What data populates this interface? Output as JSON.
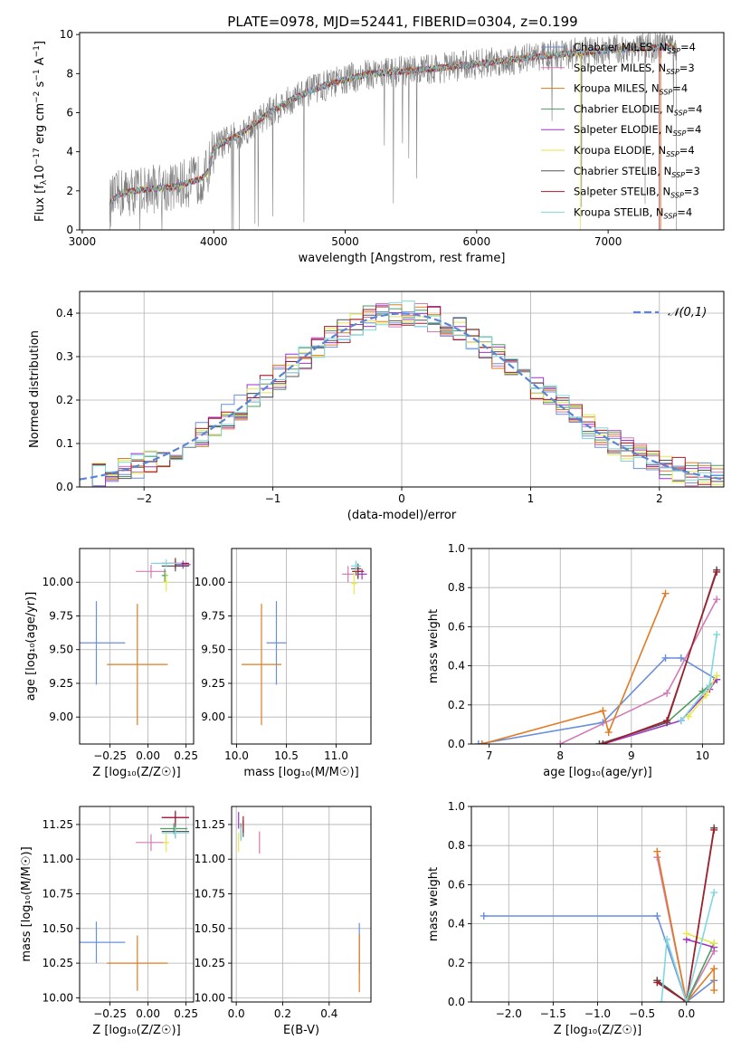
{
  "figure": {
    "title": "PLATE=0978, MJD=52441, FIBERID=0304, z=0.199"
  },
  "models": [
    {
      "name": "Chabrier MILES, N",
      "sub": "SSP",
      "suffix": "=4",
      "color": "#6a8fdb"
    },
    {
      "name": "Salpeter MILES, N",
      "sub": "SSP",
      "suffix": "=3",
      "color": "#d47ab8"
    },
    {
      "name": "Kroupa MILES, N",
      "sub": "SSP",
      "suffix": "=4",
      "color": "#e07b22"
    },
    {
      "name": "Chabrier ELODIE, N",
      "sub": "SSP",
      "suffix": "=4",
      "color": "#4f9d5e"
    },
    {
      "name": "Salpeter ELODIE, N",
      "sub": "SSP",
      "suffix": "=4",
      "color": "#a033c9"
    },
    {
      "name": "Kroupa ELODIE, N",
      "sub": "SSP",
      "suffix": "=4",
      "color": "#e6e84a"
    },
    {
      "name": "Chabrier STELIB, N",
      "sub": "SSP",
      "suffix": "=3",
      "color": "#555555"
    },
    {
      "name": "Salpeter STELIB, N",
      "sub": "SSP",
      "suffix": "=3",
      "color": "#a51d2a"
    },
    {
      "name": "Kroupa STELIB, N",
      "sub": "SSP",
      "suffix": "=4",
      "color": "#7fd8e0"
    }
  ],
  "chart_data": [
    {
      "id": "spectrum",
      "type": "line",
      "xlabel": "wavelength [Angstrom, rest frame]",
      "ylabel_main": "Flux [f",
      "ylabel_sub": "λ",
      "ylabel_rest": "10",
      "ylabel_sup1": "−17",
      "ylabel_mid": " erg cm",
      "ylabel_sup2": "−2",
      "ylabel_mid2": " s",
      "ylabel_sup3": "−1",
      "ylabel_end": " A",
      "ylabel_sup4": "−1",
      "ylabel_close": "]",
      "xlim": [
        2980,
        7880
      ],
      "ylim": [
        0,
        10.1
      ],
      "xticks": [
        3000,
        4000,
        5000,
        6000,
        7000
      ],
      "yticks": [
        0,
        2,
        4,
        6,
        8,
        10
      ],
      "data_wavelength_range": [
        3210,
        7520
      ],
      "continuum_points": [
        [
          3210,
          1.4
        ],
        [
          3300,
          1.9
        ],
        [
          3500,
          2.1
        ],
        [
          3700,
          2.2
        ],
        [
          3900,
          2.6
        ],
        [
          3950,
          2.9
        ],
        [
          4000,
          4.2
        ],
        [
          4200,
          4.9
        ],
        [
          4400,
          5.9
        ],
        [
          4600,
          6.7
        ],
        [
          4800,
          7.3
        ],
        [
          5000,
          7.7
        ],
        [
          5200,
          8.0
        ],
        [
          5600,
          8.2
        ],
        [
          6000,
          8.5
        ],
        [
          6500,
          8.9
        ],
        [
          7000,
          9.2
        ],
        [
          7500,
          9.4
        ]
      ],
      "grid": false
    },
    {
      "id": "residuals",
      "type": "histogram",
      "xlabel": "(data-model)/error",
      "ylabel": "Normed distribution",
      "xlim": [
        -2.5,
        2.5
      ],
      "ylim": [
        0,
        0.45
      ],
      "xticks": [
        -2,
        -1,
        0,
        1,
        2
      ],
      "yticks": [
        0.0,
        0.1,
        0.2,
        0.3,
        0.4
      ],
      "bin_width": 0.1,
      "reference_curve": {
        "label": "𝒩(0,1)",
        "mean": 0,
        "sigma": 1,
        "style": "dashed",
        "color": "#5b84d6"
      },
      "legend_position": "top-right",
      "grid": true
    },
    {
      "id": "age-vs-Z",
      "type": "errorbar",
      "xlabel": "Z [log₁₀(Z/Z☉)]",
      "ylabel": "age  [log₁₀(age/yr)]",
      "xlim": [
        -0.45,
        0.3
      ],
      "ylim": [
        8.8,
        10.25
      ],
      "xticks": [
        -0.25,
        0.0,
        0.25
      ],
      "yticks": [
        9.0,
        9.25,
        9.5,
        9.75,
        10.0
      ],
      "points": [
        {
          "m": 0,
          "x": -0.34,
          "y": 9.55,
          "ex": 0.19,
          "ey": 0.31
        },
        {
          "m": 2,
          "x": -0.07,
          "y": 9.39,
          "ex": 0.2,
          "ey": 0.45
        },
        {
          "m": 1,
          "x": 0.02,
          "y": 10.08,
          "ex": 0.1,
          "ey": 0.05
        },
        {
          "m": 3,
          "x": 0.11,
          "y": 10.05,
          "ex": 0.02,
          "ey": 0.05
        },
        {
          "m": 4,
          "x": 0.23,
          "y": 10.13,
          "ex": 0.05,
          "ey": 0.03
        },
        {
          "m": 5,
          "x": 0.12,
          "y": 10.0,
          "ex": 0.02,
          "ey": 0.07
        },
        {
          "m": 6,
          "x": 0.18,
          "y": 10.12,
          "ex": 0.09,
          "ey": 0.04
        },
        {
          "m": 7,
          "x": 0.18,
          "y": 10.14,
          "ex": 0.09,
          "ey": 0.04
        },
        {
          "m": 8,
          "x": 0.12,
          "y": 10.14,
          "ex": 0.1,
          "ey": 0.03
        }
      ],
      "grid": true
    },
    {
      "id": "age-vs-mass",
      "type": "errorbar",
      "xlabel": "mass [log₁₀(M/M☉)]",
      "ylabel": "",
      "xlim": [
        9.95,
        11.35
      ],
      "ylim": [
        8.8,
        10.25
      ],
      "xticks": [
        10.0,
        10.5,
        11.0
      ],
      "yticks": [
        9.0,
        9.25,
        9.5,
        9.75,
        10.0
      ],
      "points": [
        {
          "m": 0,
          "x": 10.4,
          "y": 9.55,
          "ex": 0.1,
          "ey": 0.31
        },
        {
          "m": 2,
          "x": 10.25,
          "y": 9.39,
          "ex": 0.2,
          "ey": 0.45
        },
        {
          "m": 1,
          "x": 11.12,
          "y": 10.06,
          "ex": 0.06,
          "ey": 0.06
        },
        {
          "m": 3,
          "x": 11.22,
          "y": 10.08,
          "ex": 0.05,
          "ey": 0.06
        },
        {
          "m": 4,
          "x": 11.26,
          "y": 10.06,
          "ex": 0.05,
          "ey": 0.04
        },
        {
          "m": 5,
          "x": 11.18,
          "y": 9.99,
          "ex": 0.03,
          "ey": 0.08
        },
        {
          "m": 6,
          "x": 11.2,
          "y": 10.1,
          "ex": 0.05,
          "ey": 0.05
        },
        {
          "m": 7,
          "x": 11.22,
          "y": 10.08,
          "ex": 0.06,
          "ey": 0.05
        },
        {
          "m": 8,
          "x": 11.2,
          "y": 10.12,
          "ex": 0.05,
          "ey": 0.04
        }
      ],
      "grid": true
    },
    {
      "id": "massweight-vs-age",
      "type": "line",
      "xlabel": "age  [log₁₀(age/yr)]",
      "ylabel": "mass weight",
      "xlim": [
        6.75,
        10.3
      ],
      "ylim": [
        0,
        1.0
      ],
      "xticks": [
        7,
        8,
        9,
        10
      ],
      "yticks": [
        0.0,
        0.2,
        0.4,
        0.6,
        0.8,
        1.0
      ],
      "series": [
        {
          "m": 0,
          "points": [
            [
              6.85,
              0.0
            ],
            [
              8.6,
              0.11
            ],
            [
              9.48,
              0.44
            ],
            [
              9.7,
              0.44
            ],
            [
              10.2,
              0.33
            ]
          ]
        },
        {
          "m": 1,
          "points": [
            [
              8.0,
              0.0
            ],
            [
              9.5,
              0.26
            ],
            [
              10.2,
              0.74
            ]
          ]
        },
        {
          "m": 2,
          "points": [
            [
              6.9,
              0.0
            ],
            [
              8.6,
              0.17
            ],
            [
              8.68,
              0.06
            ],
            [
              9.48,
              0.77
            ]
          ]
        },
        {
          "m": 3,
          "points": [
            [
              8.55,
              0.0
            ],
            [
              9.5,
              0.11
            ],
            [
              10.0,
              0.27
            ],
            [
              10.2,
              0.33
            ]
          ]
        },
        {
          "m": 4,
          "points": [
            [
              8.6,
              0.0
            ],
            [
              9.7,
              0.12
            ],
            [
              10.1,
              0.28
            ],
            [
              10.2,
              0.33
            ]
          ]
        },
        {
          "m": 5,
          "points": [
            [
              9.8,
              0.14
            ],
            [
              10.05,
              0.25
            ],
            [
              10.2,
              0.35
            ]
          ]
        },
        {
          "m": 6,
          "points": [
            [
              8.55,
              0.0
            ],
            [
              9.5,
              0.11
            ],
            [
              10.2,
              0.89
            ]
          ]
        },
        {
          "m": 7,
          "points": [
            [
              8.6,
              0.0
            ],
            [
              9.5,
              0.12
            ],
            [
              10.2,
              0.88
            ]
          ]
        },
        {
          "m": 8,
          "points": [
            [
              9.7,
              0.12
            ],
            [
              10.1,
              0.3
            ],
            [
              10.2,
              0.56
            ]
          ]
        }
      ],
      "grid": true
    },
    {
      "id": "mass-vs-Z",
      "type": "errorbar",
      "xlabel": "Z [log₁₀(Z/Z☉)]",
      "ylabel": "mass [log₁₀(M/M☉)]",
      "xlim": [
        -0.45,
        0.3
      ],
      "ylim": [
        9.97,
        11.38
      ],
      "xticks": [
        -0.25,
        0.0,
        0.25
      ],
      "yticks": [
        10.0,
        10.25,
        10.5,
        10.75,
        11.0,
        11.25
      ],
      "points": [
        {
          "m": 0,
          "x": -0.34,
          "y": 10.4,
          "ex": 0.19,
          "ey": 0.15
        },
        {
          "m": 2,
          "x": -0.07,
          "y": 10.25,
          "ex": 0.2,
          "ey": 0.2
        },
        {
          "m": 1,
          "x": 0.02,
          "y": 11.12,
          "ex": 0.1,
          "ey": 0.06
        },
        {
          "m": 3,
          "x": 0.17,
          "y": 11.22,
          "ex": 0.09,
          "ey": 0.04
        },
        {
          "m": 4,
          "x": 0.18,
          "y": 11.3,
          "ex": 0.09,
          "ey": 0.04
        },
        {
          "m": 5,
          "x": 0.12,
          "y": 11.12,
          "ex": 0.02,
          "ey": 0.07
        },
        {
          "m": 6,
          "x": 0.18,
          "y": 11.2,
          "ex": 0.09,
          "ey": 0.05
        },
        {
          "m": 7,
          "x": 0.18,
          "y": 11.3,
          "ex": 0.09,
          "ey": 0.05
        },
        {
          "m": 8,
          "x": 0.18,
          "y": 11.19,
          "ex": 0.09,
          "ey": 0.04
        }
      ],
      "grid": true
    },
    {
      "id": "mass-vs-EBV",
      "type": "errorbar",
      "xlabel": "E(B-V)",
      "ylabel": "",
      "xlim": [
        -0.02,
        0.58
      ],
      "ylim": [
        9.97,
        11.38
      ],
      "xticks": [
        0.0,
        0.2,
        0.4
      ],
      "yticks": [
        10.0,
        10.25,
        10.5,
        10.75,
        11.0,
        11.25
      ],
      "points": [
        {
          "m": 0,
          "x": 0.53,
          "y": 10.36,
          "ex": 0.0,
          "ey": 0.18
        },
        {
          "m": 2,
          "x": 0.53,
          "y": 10.25,
          "ex": 0.0,
          "ey": 0.21
        },
        {
          "m": 1,
          "x": 0.1,
          "y": 11.12,
          "ex": 0.0,
          "ey": 0.08
        },
        {
          "m": 3,
          "x": 0.02,
          "y": 11.2,
          "ex": 0.0,
          "ey": 0.06
        },
        {
          "m": 4,
          "x": 0.01,
          "y": 11.28,
          "ex": 0.0,
          "ey": 0.06
        },
        {
          "m": 5,
          "x": 0.01,
          "y": 11.12,
          "ex": 0.0,
          "ey": 0.07
        },
        {
          "m": 6,
          "x": 0.03,
          "y": 11.22,
          "ex": 0.0,
          "ey": 0.06
        },
        {
          "m": 7,
          "x": 0.03,
          "y": 11.25,
          "ex": 0.0,
          "ey": 0.06
        },
        {
          "m": 8,
          "x": 0.02,
          "y": 11.18,
          "ex": 0.0,
          "ey": 0.05
        }
      ],
      "grid": true
    },
    {
      "id": "massweight-vs-Z",
      "type": "line",
      "xlabel": "Z [log₁₀(Z/Z☉)]",
      "ylabel": "mass weight",
      "xlim": [
        -2.42,
        0.42
      ],
      "ylim": [
        0,
        1.0
      ],
      "xticks": [
        -2.0,
        -1.5,
        -1.0,
        -0.5,
        0.0
      ],
      "yticks": [
        0.0,
        0.2,
        0.4,
        0.6,
        0.8,
        1.0
      ],
      "series": [
        {
          "m": 0,
          "points": [
            [
              -2.28,
              0.44
            ],
            [
              -0.33,
              0.44
            ],
            [
              0.0,
              0.0
            ],
            [
              0.31,
              0.11
            ]
          ]
        },
        {
          "m": 1,
          "points": [
            [
              -0.33,
              0.74
            ],
            [
              0.0,
              0.0
            ],
            [
              0.31,
              0.26
            ]
          ]
        },
        {
          "m": 2,
          "points": [
            [
              -0.33,
              0.77
            ],
            [
              0.0,
              0.0
            ],
            [
              0.31,
              0.17
            ],
            [
              0.31,
              0.06
            ]
          ]
        },
        {
          "m": 3,
          "points": [
            [
              -0.33,
              0.11
            ],
            [
              0.0,
              0.0
            ],
            [
              0.31,
              0.3
            ]
          ]
        },
        {
          "m": 4,
          "points": [
            [
              0.0,
              0.32
            ],
            [
              0.31,
              0.28
            ]
          ]
        },
        {
          "m": 5,
          "points": [
            [
              0.0,
              0.35
            ],
            [
              0.31,
              0.3
            ]
          ]
        },
        {
          "m": 6,
          "points": [
            [
              -0.33,
              0.11
            ],
            [
              0.0,
              0.0
            ],
            [
              0.31,
              0.89
            ]
          ]
        },
        {
          "m": 7,
          "points": [
            [
              -0.33,
              0.1
            ],
            [
              0.0,
              0.0
            ],
            [
              0.31,
              0.88
            ]
          ]
        },
        {
          "m": 8,
          "points": [
            [
              -0.28,
              0.0
            ],
            [
              -0.22,
              0.32
            ],
            [
              0.0,
              0.0
            ],
            [
              0.31,
              0.56
            ]
          ]
        }
      ],
      "grid": true
    }
  ]
}
